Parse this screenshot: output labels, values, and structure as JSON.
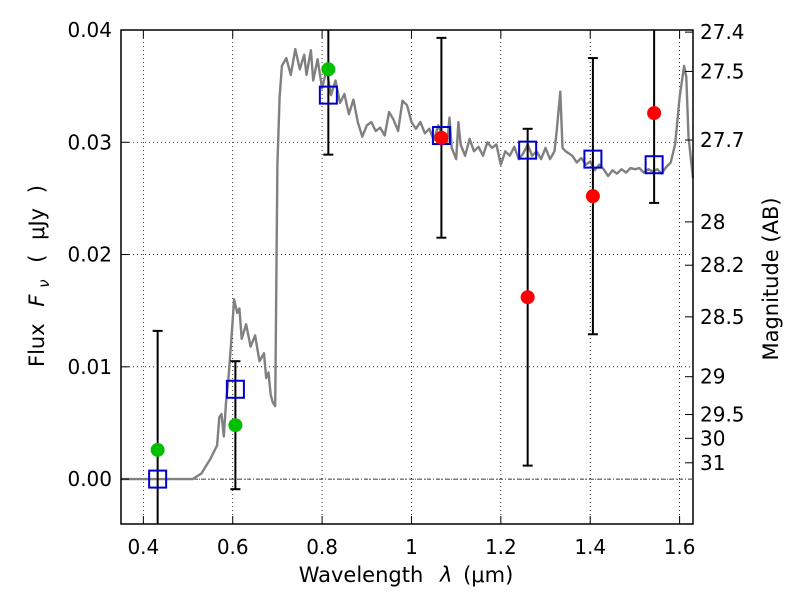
{
  "chart_data": {
    "type": "scatter",
    "xlabel_text": "Wavelength",
    "xlabel_symbol": "λ",
    "xlabel_unit": "(μm)",
    "ylabel_text": "Flux",
    "ylabel_symbol": "F",
    "ylabel_symbol_sub": "ν",
    "ylabel_unit_open": "(",
    "ylabel_unit_mid": "μJy",
    "ylabel_unit_close": ")",
    "y2label": "Magnitude (AB)",
    "xlim": [
      0.35,
      1.63
    ],
    "ylim": [
      -0.004,
      0.04
    ],
    "grid": true,
    "x_ticks": [
      {
        "value": 0.4,
        "label": "0.4"
      },
      {
        "value": 0.6,
        "label": "0.6"
      },
      {
        "value": 0.8,
        "label": "0.8"
      },
      {
        "value": 1.0,
        "label": "1"
      },
      {
        "value": 1.2,
        "label": "1.2"
      },
      {
        "value": 1.4,
        "label": "1.4"
      },
      {
        "value": 1.6,
        "label": "1.6"
      }
    ],
    "y_ticks": [
      {
        "value": 0.0,
        "label": "0.00"
      },
      {
        "value": 0.01,
        "label": "0.01"
      },
      {
        "value": 0.02,
        "label": "0.02"
      },
      {
        "value": 0.03,
        "label": "0.03"
      },
      {
        "value": 0.04,
        "label": "0.04"
      }
    ],
    "mag_ticks": [
      {
        "value": 0.03981,
        "label": "27.4"
      },
      {
        "value": 0.03631,
        "label": "27.5"
      },
      {
        "value": 0.0302,
        "label": "27.7"
      },
      {
        "value": 0.02291,
        "label": "28"
      },
      {
        "value": 0.01905,
        "label": "28.2"
      },
      {
        "value": 0.01445,
        "label": "28.5"
      },
      {
        "value": 0.00912,
        "label": "29"
      },
      {
        "value": 0.00575,
        "label": "29.5"
      },
      {
        "value": 0.00363,
        "label": "30"
      },
      {
        "value": 0.00145,
        "label": "31"
      }
    ],
    "colors": {
      "model": "#808080",
      "green": "#00c000",
      "red": "#ff0000",
      "square": "#0000cc",
      "error": "#000000"
    },
    "model_spectrum": [
      [
        0.35,
        0.0
      ],
      [
        0.51,
        0.0
      ],
      [
        0.53,
        0.0005
      ],
      [
        0.55,
        0.0018
      ],
      [
        0.565,
        0.003
      ],
      [
        0.57,
        0.0055
      ],
      [
        0.575,
        0.0058
      ],
      [
        0.58,
        0.0038
      ],
      [
        0.585,
        0.0068
      ],
      [
        0.59,
        0.0088
      ],
      [
        0.597,
        0.0125
      ],
      [
        0.603,
        0.016
      ],
      [
        0.61,
        0.0148
      ],
      [
        0.615,
        0.0152
      ],
      [
        0.62,
        0.0125
      ],
      [
        0.63,
        0.0138
      ],
      [
        0.64,
        0.0118
      ],
      [
        0.65,
        0.0128
      ],
      [
        0.66,
        0.0105
      ],
      [
        0.67,
        0.0112
      ],
      [
        0.675,
        0.009
      ],
      [
        0.68,
        0.0095
      ],
      [
        0.685,
        0.0075
      ],
      [
        0.69,
        0.0068
      ],
      [
        0.695,
        0.0065
      ],
      [
        0.7,
        0.028
      ],
      [
        0.705,
        0.034
      ],
      [
        0.71,
        0.0368
      ],
      [
        0.72,
        0.0375
      ],
      [
        0.73,
        0.036
      ],
      [
        0.74,
        0.0383
      ],
      [
        0.75,
        0.0365
      ],
      [
        0.76,
        0.0378
      ],
      [
        0.765,
        0.036
      ],
      [
        0.775,
        0.0382
      ],
      [
        0.78,
        0.0355
      ],
      [
        0.79,
        0.0374
      ],
      [
        0.8,
        0.0348
      ],
      [
        0.81,
        0.0365
      ],
      [
        0.82,
        0.0342
      ],
      [
        0.83,
        0.0355
      ],
      [
        0.84,
        0.0335
      ],
      [
        0.85,
        0.0343
      ],
      [
        0.86,
        0.0325
      ],
      [
        0.87,
        0.0338
      ],
      [
        0.88,
        0.0318
      ],
      [
        0.89,
        0.0305
      ],
      [
        0.9,
        0.0315
      ],
      [
        0.91,
        0.0318
      ],
      [
        0.92,
        0.031
      ],
      [
        0.93,
        0.0313
      ],
      [
        0.94,
        0.0306
      ],
      [
        0.95,
        0.0327
      ],
      [
        0.96,
        0.032
      ],
      [
        0.97,
        0.031
      ],
      [
        0.98,
        0.0337
      ],
      [
        0.99,
        0.0333
      ],
      [
        1.0,
        0.0318
      ],
      [
        1.01,
        0.0312
      ],
      [
        1.02,
        0.0318
      ],
      [
        1.03,
        0.0308
      ],
      [
        1.04,
        0.0312
      ],
      [
        1.05,
        0.0302
      ],
      [
        1.06,
        0.0315
      ],
      [
        1.07,
        0.0305
      ],
      [
        1.08,
        0.03
      ],
      [
        1.085,
        0.0322
      ],
      [
        1.09,
        0.0295
      ],
      [
        1.1,
        0.0285
      ],
      [
        1.105,
        0.0318
      ],
      [
        1.11,
        0.0298
      ],
      [
        1.12,
        0.0288
      ],
      [
        1.13,
        0.0303
      ],
      [
        1.14,
        0.0292
      ],
      [
        1.15,
        0.0296
      ],
      [
        1.16,
        0.0288
      ],
      [
        1.17,
        0.03
      ],
      [
        1.18,
        0.0295
      ],
      [
        1.19,
        0.0298
      ],
      [
        1.2,
        0.028
      ],
      [
        1.21,
        0.0292
      ],
      [
        1.22,
        0.0288
      ],
      [
        1.23,
        0.0296
      ],
      [
        1.24,
        0.0285
      ],
      [
        1.25,
        0.029
      ],
      [
        1.26,
        0.0298
      ],
      [
        1.27,
        0.0288
      ],
      [
        1.28,
        0.0292
      ],
      [
        1.29,
        0.0285
      ],
      [
        1.3,
        0.0295
      ],
      [
        1.31,
        0.0285
      ],
      [
        1.32,
        0.0292
      ],
      [
        1.325,
        0.031
      ],
      [
        1.333,
        0.0345
      ],
      [
        1.338,
        0.0295
      ],
      [
        1.345,
        0.0292
      ],
      [
        1.36,
        0.0288
      ],
      [
        1.37,
        0.0282
      ],
      [
        1.38,
        0.0286
      ],
      [
        1.39,
        0.028
      ],
      [
        1.4,
        0.0283
      ],
      [
        1.41,
        0.0275
      ],
      [
        1.42,
        0.028
      ],
      [
        1.43,
        0.0276
      ],
      [
        1.44,
        0.027
      ],
      [
        1.45,
        0.0275
      ],
      [
        1.46,
        0.0272
      ],
      [
        1.47,
        0.0276
      ],
      [
        1.48,
        0.0273
      ],
      [
        1.49,
        0.0277
      ],
      [
        1.5,
        0.0276
      ],
      [
        1.51,
        0.0277
      ],
      [
        1.52,
        0.0273
      ],
      [
        1.53,
        0.0276
      ],
      [
        1.54,
        0.0274
      ],
      [
        1.55,
        0.0276
      ],
      [
        1.56,
        0.0272
      ],
      [
        1.57,
        0.0278
      ],
      [
        1.58,
        0.0282
      ],
      [
        1.59,
        0.0298
      ],
      [
        1.6,
        0.034
      ],
      [
        1.61,
        0.0368
      ],
      [
        1.615,
        0.0358
      ],
      [
        1.62,
        0.0305
      ],
      [
        1.63,
        0.0268
      ]
    ],
    "model_photometry": [
      {
        "x": 0.432,
        "y": 0.0
      },
      {
        "x": 0.606,
        "y": 0.008
      },
      {
        "x": 0.814,
        "y": 0.0342
      },
      {
        "x": 1.067,
        "y": 0.0306
      },
      {
        "x": 1.26,
        "y": 0.0293
      },
      {
        "x": 1.406,
        "y": 0.0285
      },
      {
        "x": 1.543,
        "y": 0.028
      }
    ],
    "observed_detections": [
      {
        "x": 0.432,
        "y": 0.0026,
        "err": 0.0106
      },
      {
        "x": 0.606,
        "y": 0.0048,
        "err": 0.0057
      },
      {
        "x": 0.814,
        "y": 0.0365,
        "err": 0.0076
      }
    ],
    "observed_limits": [
      {
        "x": 1.067,
        "y": 0.0304,
        "err": 0.0089
      },
      {
        "x": 1.26,
        "y": 0.0162,
        "err": 0.015
      },
      {
        "x": 1.406,
        "y": 0.0252,
        "err": 0.0123
      },
      {
        "x": 1.543,
        "y": 0.0326,
        "err": 0.008
      }
    ]
  }
}
